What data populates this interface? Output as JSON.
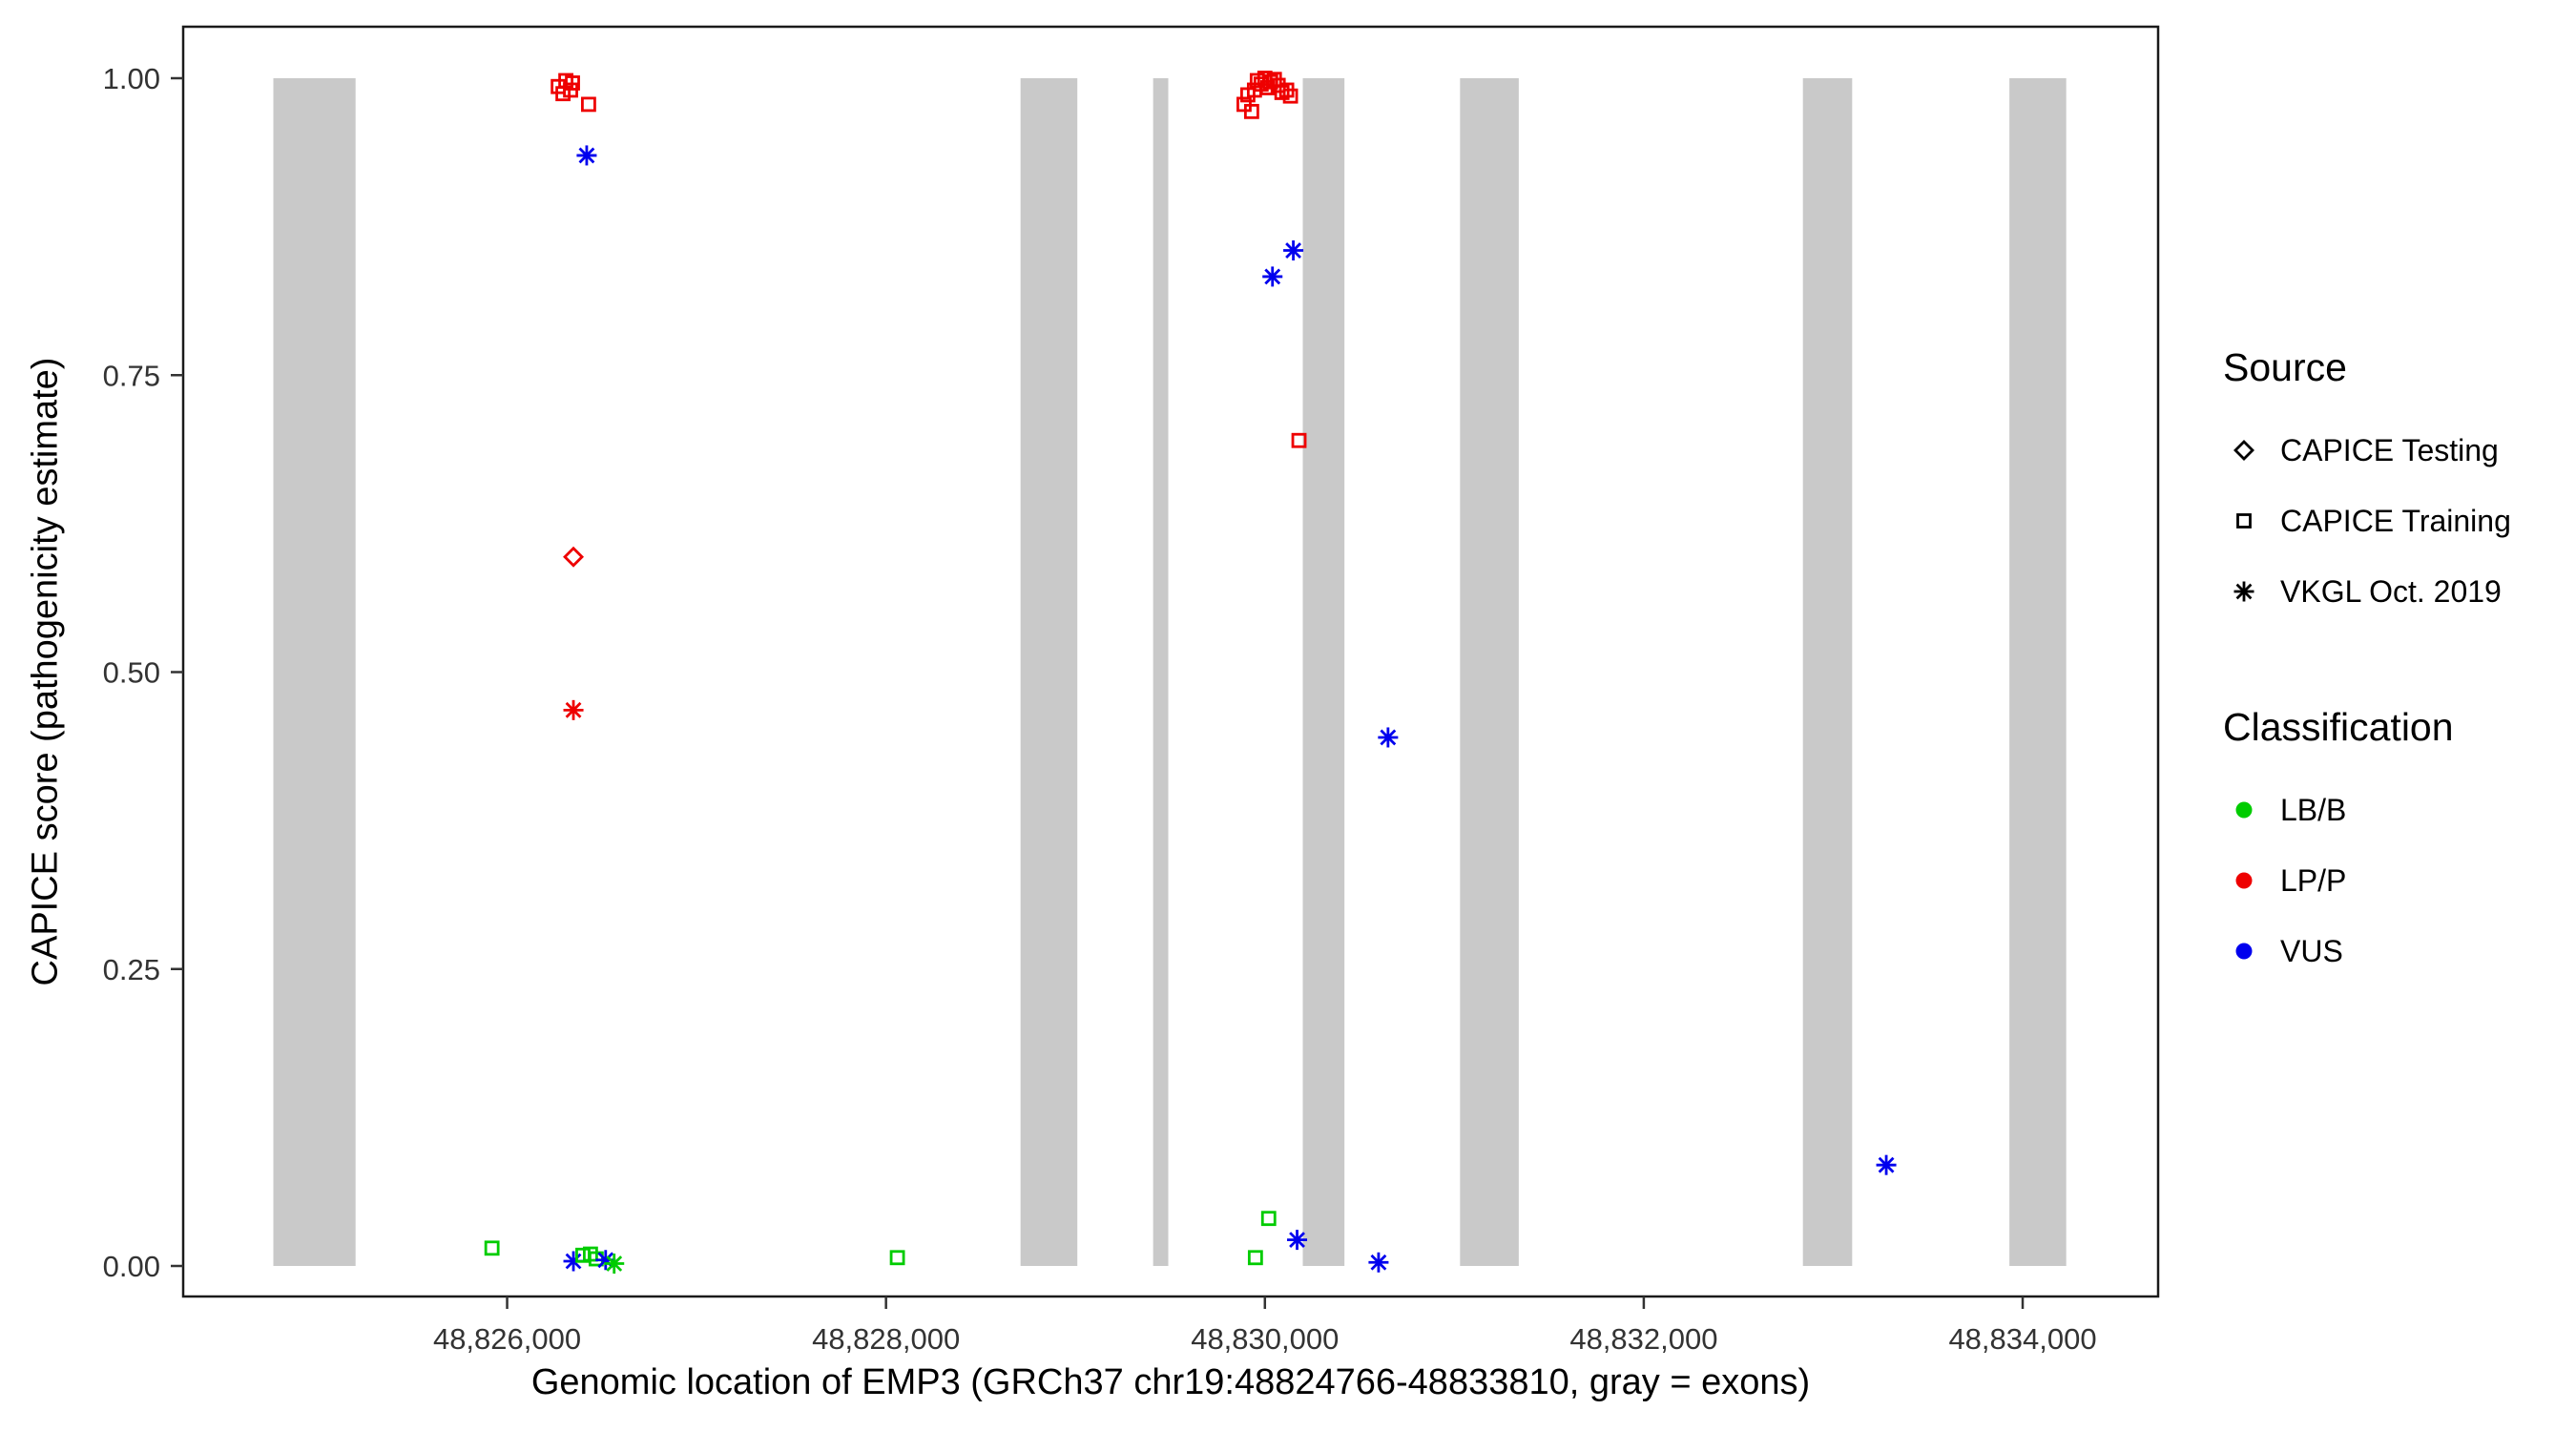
{
  "chart_data": {
    "type": "scatter",
    "title": "",
    "xlabel": "Genomic location of EMP3 (GRCh37 chr19:48824766-48833810, gray = exons)",
    "ylabel": "CAPICE score (pathogenicity estimate)",
    "xlim": [
      48824290,
      48834715
    ],
    "ylim": [
      0.0,
      1.0
    ],
    "grid": false,
    "x_ticks": [
      {
        "value": 48826000,
        "label": "48,826,000"
      },
      {
        "value": 48828000,
        "label": "48,828,000"
      },
      {
        "value": 48830000,
        "label": "48,830,000"
      },
      {
        "value": 48832000,
        "label": "48,832,000"
      },
      {
        "value": 48834000,
        "label": "48,834,000"
      }
    ],
    "y_ticks": [
      {
        "value": 0.0,
        "label": "0.00"
      },
      {
        "value": 0.25,
        "label": "0.25"
      },
      {
        "value": 0.5,
        "label": "0.50"
      },
      {
        "value": 0.75,
        "label": "0.75"
      },
      {
        "value": 1.0,
        "label": "1.00"
      }
    ],
    "exons": [
      [
        48824766,
        48825200
      ],
      [
        48828710,
        48829010
      ],
      [
        48829410,
        48829490
      ],
      [
        48830200,
        48830420
      ],
      [
        48831030,
        48831340
      ],
      [
        48832840,
        48833100
      ],
      [
        48833930,
        48834230
      ]
    ],
    "colors": {
      "LB/B": "#00CC00",
      "LP/P": "#EE0000",
      "VUS": "#0000EE",
      "exon": "#C9C9C9"
    },
    "points": [
      {
        "x": 48826270,
        "y": 0.993,
        "source": "training",
        "class": "LP/P"
      },
      {
        "x": 48826310,
        "y": 0.998,
        "source": "training",
        "class": "LP/P"
      },
      {
        "x": 48826345,
        "y": 0.996,
        "source": "training",
        "class": "LP/P"
      },
      {
        "x": 48826295,
        "y": 0.987,
        "source": "training",
        "class": "LP/P"
      },
      {
        "x": 48826335,
        "y": 0.99,
        "source": "training",
        "class": "LP/P"
      },
      {
        "x": 48826430,
        "y": 0.978,
        "source": "training",
        "class": "LP/P"
      },
      {
        "x": 48826420,
        "y": 0.935,
        "source": "vkgl",
        "class": "VUS"
      },
      {
        "x": 48826350,
        "y": 0.597,
        "source": "testing",
        "class": "LP/P"
      },
      {
        "x": 48826350,
        "y": 0.468,
        "source": "vkgl",
        "class": "LP/P"
      },
      {
        "x": 48829890,
        "y": 0.978,
        "source": "training",
        "class": "LP/P"
      },
      {
        "x": 48829910,
        "y": 0.986,
        "source": "training",
        "class": "LP/P"
      },
      {
        "x": 48829930,
        "y": 0.972,
        "source": "training",
        "class": "LP/P"
      },
      {
        "x": 48829945,
        "y": 0.99,
        "source": "training",
        "class": "LP/P"
      },
      {
        "x": 48829960,
        "y": 0.998,
        "source": "training",
        "class": "LP/P"
      },
      {
        "x": 48829980,
        "y": 0.995,
        "source": "training",
        "class": "LP/P"
      },
      {
        "x": 48830000,
        "y": 1.0,
        "source": "training",
        "class": "LP/P"
      },
      {
        "x": 48830015,
        "y": 0.992,
        "source": "training",
        "class": "LP/P"
      },
      {
        "x": 48830030,
        "y": 0.997,
        "source": "training",
        "class": "LP/P"
      },
      {
        "x": 48830050,
        "y": 0.999,
        "source": "training",
        "class": "LP/P"
      },
      {
        "x": 48830070,
        "y": 0.994,
        "source": "training",
        "class": "LP/P"
      },
      {
        "x": 48830090,
        "y": 0.988,
        "source": "training",
        "class": "LP/P"
      },
      {
        "x": 48830115,
        "y": 0.99,
        "source": "training",
        "class": "LP/P"
      },
      {
        "x": 48830135,
        "y": 0.985,
        "source": "training",
        "class": "LP/P"
      },
      {
        "x": 48830040,
        "y": 0.833,
        "source": "vkgl",
        "class": "VUS"
      },
      {
        "x": 48830150,
        "y": 0.855,
        "source": "vkgl",
        "class": "VUS"
      },
      {
        "x": 48830180,
        "y": 0.695,
        "source": "training",
        "class": "LP/P"
      },
      {
        "x": 48830650,
        "y": 0.445,
        "source": "vkgl",
        "class": "VUS"
      },
      {
        "x": 48833280,
        "y": 0.085,
        "source": "vkgl",
        "class": "VUS"
      },
      {
        "x": 48825920,
        "y": 0.015,
        "source": "training",
        "class": "LB/B"
      },
      {
        "x": 48826350,
        "y": 0.004,
        "source": "vkgl",
        "class": "VUS"
      },
      {
        "x": 48826400,
        "y": 0.009,
        "source": "training",
        "class": "LB/B"
      },
      {
        "x": 48826440,
        "y": 0.01,
        "source": "training",
        "class": "LB/B"
      },
      {
        "x": 48826470,
        "y": 0.006,
        "source": "training",
        "class": "LB/B"
      },
      {
        "x": 48826520,
        "y": 0.005,
        "source": "vkgl",
        "class": "VUS"
      },
      {
        "x": 48826565,
        "y": 0.002,
        "source": "vkgl",
        "class": "LB/B"
      },
      {
        "x": 48828060,
        "y": 0.007,
        "source": "training",
        "class": "LB/B"
      },
      {
        "x": 48829950,
        "y": 0.007,
        "source": "training",
        "class": "LB/B"
      },
      {
        "x": 48830020,
        "y": 0.04,
        "source": "training",
        "class": "LB/B"
      },
      {
        "x": 48830170,
        "y": 0.022,
        "source": "vkgl",
        "class": "VUS"
      },
      {
        "x": 48830600,
        "y": 0.003,
        "source": "vkgl",
        "class": "VUS"
      }
    ]
  },
  "legend": {
    "source": {
      "title": "Source",
      "items": [
        {
          "label": "CAPICE Testing",
          "marker": "diamond",
          "color": "#000000"
        },
        {
          "label": "CAPICE Training",
          "marker": "square",
          "color": "#000000"
        },
        {
          "label": "VKGL Oct. 2019",
          "marker": "asterisk",
          "color": "#000000"
        }
      ]
    },
    "classification": {
      "title": "Classification",
      "items": [
        {
          "label": "LB/B",
          "marker": "dot",
          "color": "#00CC00"
        },
        {
          "label": "LP/P",
          "marker": "dot",
          "color": "#EE0000"
        },
        {
          "label": "VUS",
          "marker": "dot",
          "color": "#0000EE"
        }
      ]
    }
  }
}
